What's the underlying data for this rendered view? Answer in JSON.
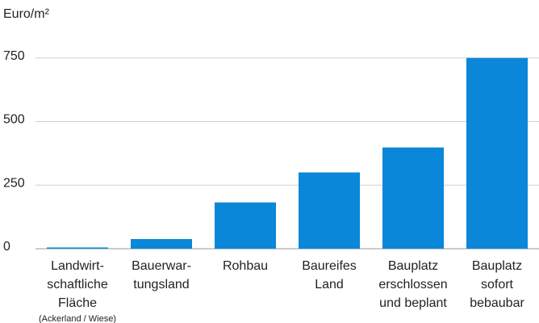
{
  "chart_data": {
    "type": "bar",
    "y_axis_label": "Euro/m²",
    "categories": [
      [
        "Landwirt-",
        "schaftliche",
        "Fläche"
      ],
      [
        "Bauerwar-",
        "tungsland"
      ],
      [
        "Rohbau"
      ],
      [
        "Baureifes",
        "Land"
      ],
      [
        "Bauplatz",
        "erschlossen",
        "und beplant"
      ],
      [
        "Bauplatz",
        "sofort",
        "bebaubar"
      ]
    ],
    "category_notes": [
      "(Ackerland / Wiese)",
      null,
      null,
      null,
      null,
      null
    ],
    "values": [
      5,
      38,
      182,
      300,
      398,
      750
    ],
    "color": "#0a87d8",
    "ylim": [
      0,
      800
    ],
    "yticks": [
      0,
      250,
      500,
      750
    ],
    "grid": true
  }
}
